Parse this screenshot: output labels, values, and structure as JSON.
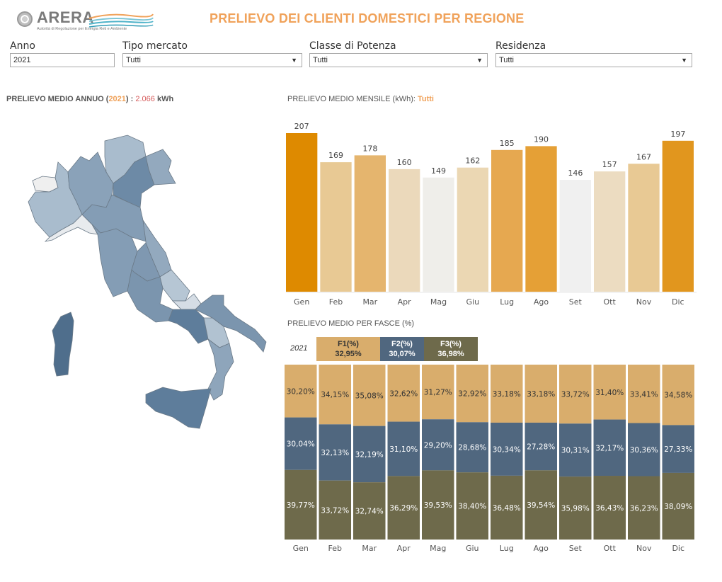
{
  "header": {
    "logo_text": "ARERA",
    "logo_tagline": "Autorità di Regolazione per Energia Reti e Ambiente",
    "title": "PRELIEVO DEI CLIENTI DOMESTICI PER REGIONE"
  },
  "filters": [
    {
      "label": "Anno",
      "value": "2021",
      "type": "input"
    },
    {
      "label": "Tipo mercato",
      "value": "Tutti",
      "type": "select"
    },
    {
      "label": "Classe di Potenza",
      "value": "Tutti",
      "type": "select"
    },
    {
      "label": "Residenza",
      "value": "Tutti",
      "type": "select"
    }
  ],
  "annual": {
    "prefix": "PRELIEVO MEDIO ANNUO (",
    "year": "2021",
    "mid": ") : ",
    "value": "2.066",
    "unit": " kWh"
  },
  "monthly_title": {
    "prefix": "PRELIEVO MEDIO MENSILE (kWh): ",
    "filter": "Tutti"
  },
  "fasce_title": "PRELIEVO MEDIO  PER FASCE (%)",
  "fasce_legend": {
    "year": "2021",
    "items": [
      {
        "name": "F1(%)",
        "value": "32,95%",
        "color": "#d9ad6c"
      },
      {
        "name": "F2(%)",
        "value": "30,07%",
        "color": "#50677f"
      },
      {
        "name": "F3(%)",
        "value": "36,98%",
        "color": "#6e6a4b"
      }
    ]
  },
  "map": {
    "regions": [
      {
        "name": "Valle d'Aosta",
        "color": "#efefef"
      },
      {
        "name": "Piemonte",
        "color": "#a9bccd"
      },
      {
        "name": "Liguria",
        "color": "#e8ebee"
      },
      {
        "name": "Lombardia",
        "color": "#8aa2b9"
      },
      {
        "name": "Trentino-Alto Adige",
        "color": "#a9bccd"
      },
      {
        "name": "Veneto",
        "color": "#6d8aa6"
      },
      {
        "name": "Friuli-Venezia Giulia",
        "color": "#93a9be"
      },
      {
        "name": "Emilia-Romagna",
        "color": "#849db5"
      },
      {
        "name": "Toscana",
        "color": "#849db5"
      },
      {
        "name": "Umbria",
        "color": "#7f98b1"
      },
      {
        "name": "Marche",
        "color": "#93a9be"
      },
      {
        "name": "Lazio",
        "color": "#7b95ae"
      },
      {
        "name": "Abruzzo",
        "color": "#b6c6d4"
      },
      {
        "name": "Molise",
        "color": "#d5dde5"
      },
      {
        "name": "Campania",
        "color": "#5e7d9b"
      },
      {
        "name": "Puglia",
        "color": "#7b95ae"
      },
      {
        "name": "Basilicata",
        "color": "#b1c2d1"
      },
      {
        "name": "Calabria",
        "color": "#8ea5bb"
      },
      {
        "name": "Sicilia",
        "color": "#5e7d9b"
      },
      {
        "name": "Sardegna",
        "color": "#4f6e8c"
      }
    ]
  },
  "chart_data": [
    {
      "type": "bar",
      "title": "PRELIEVO MEDIO MENSILE (kWh): Tutti",
      "categories": [
        "Gen",
        "Feb",
        "Mar",
        "Apr",
        "Mag",
        "Giu",
        "Lug",
        "Ago",
        "Set",
        "Ott",
        "Nov",
        "Dic"
      ],
      "values": [
        207,
        169,
        178,
        160,
        149,
        162,
        185,
        190,
        146,
        157,
        167,
        197
      ],
      "colors": [
        "#de8a00",
        "#e8c994",
        "#e5b56e",
        "#ebd9bb",
        "#efeeea",
        "#ebd7b3",
        "#e6a850",
        "#e5a036",
        "#f0f0f0",
        "#ecdcc1",
        "#e8c994",
        "#e1961e"
      ],
      "xlabel": "",
      "ylabel": "kWh",
      "ylim": [
        0,
        207
      ],
      "grid": false
    },
    {
      "type": "bar",
      "stacked": true,
      "normalized": true,
      "title": "PRELIEVO MEDIO  PER FASCE (%)",
      "categories": [
        "Gen",
        "Feb",
        "Mar",
        "Apr",
        "Mag",
        "Giu",
        "Lug",
        "Ago",
        "Set",
        "Ott",
        "Nov",
        "Dic"
      ],
      "series": [
        {
          "name": "F1(%)",
          "color": "#d9ad6c",
          "label_color": "#333333",
          "values": [
            30.2,
            34.15,
            35.08,
            32.62,
            31.27,
            32.92,
            33.18,
            33.18,
            33.72,
            31.4,
            33.41,
            34.58
          ],
          "labels": [
            "30,20%",
            "34,15%",
            "35,08%",
            "32,62%",
            "31,27%",
            "32,92%",
            "33,18%",
            "33,18%",
            "33,72%",
            "31,40%",
            "33,41%",
            "34,58%"
          ]
        },
        {
          "name": "F2(%)",
          "color": "#50677f",
          "label_color": "#ffffff",
          "values": [
            30.04,
            32.13,
            32.19,
            31.1,
            29.2,
            28.68,
            30.34,
            27.28,
            30.31,
            32.17,
            30.36,
            27.33
          ],
          "labels": [
            "30,04%",
            "32,13%",
            "32,19%",
            "31,10%",
            "29,20%",
            "28,68%",
            "30,34%",
            "27,28%",
            "30,31%",
            "32,17%",
            "30,36%",
            "27,33%"
          ]
        },
        {
          "name": "F3(%)",
          "color": "#6e6a4b",
          "label_color": "#ffffff",
          "values": [
            39.77,
            33.72,
            32.74,
            36.29,
            39.53,
            38.4,
            36.48,
            39.54,
            35.98,
            36.43,
            36.23,
            38.09
          ],
          "labels": [
            "39,77%",
            "33,72%",
            "32,74%",
            "36,29%",
            "39,53%",
            "38,40%",
            "36,48%",
            "39,54%",
            "35,98%",
            "36,43%",
            "36,23%",
            "38,09%"
          ]
        }
      ],
      "ylim": [
        0,
        100
      ],
      "grid": false,
      "legend": "top-left"
    }
  ]
}
